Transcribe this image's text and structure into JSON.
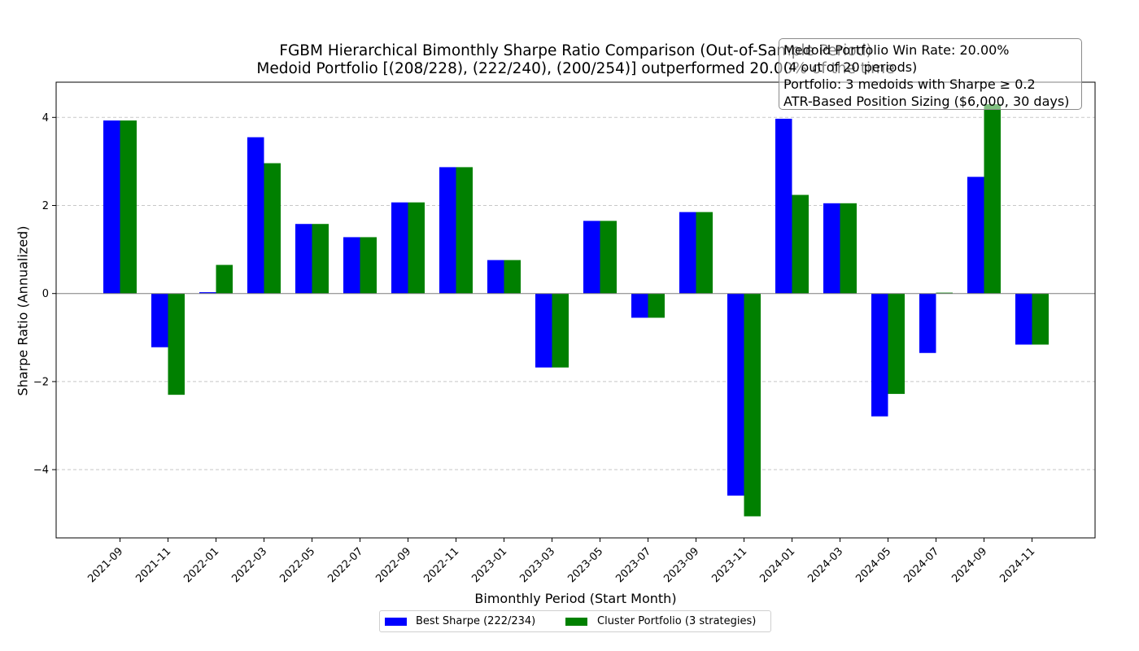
{
  "title": {
    "line1": "FGBM Hierarchical Bimonthly Sharpe Ratio Comparison (Out-of-Sample Period)",
    "line2": "Medoid Portfolio [(208/228), (222/240), (200/254)] outperformed 20.00% of the time"
  },
  "annotation": {
    "lines": [
      "Medoid Portfolio Win Rate: 20.00%",
      "(4 out of 20 periods)",
      "Portfolio: 3 medoids with Sharpe ≥ 0.2",
      "ATR-Based Position Sizing ($6,000, 30 days)"
    ]
  },
  "legend": {
    "items": [
      {
        "label": "Best Sharpe (222/234)",
        "color": "#0000ff"
      },
      {
        "label": "Cluster Portfolio (3 strategies)",
        "color": "#008000"
      }
    ],
    "placement": "bottom-center, below the axes"
  },
  "chart_data": {
    "type": "bar",
    "title": "FGBM Hierarchical Bimonthly Sharpe Ratio Comparison (Out-of-Sample Period)",
    "subtitle": "Medoid Portfolio [(208/228), (222/240), (200/254)] outperformed 20.00% of the time",
    "xlabel": "Bimonthly Period (Start Month)",
    "ylabel": "Sharpe Ratio (Annualized)",
    "ylim": [
      -5.55,
      4.8
    ],
    "yticks": [
      -4,
      -2,
      0,
      2,
      4
    ],
    "grid": "horizontal dashed",
    "categories": [
      "2021-09",
      "2021-11",
      "2022-01",
      "2022-03",
      "2022-05",
      "2022-07",
      "2022-09",
      "2022-11",
      "2023-01",
      "2023-03",
      "2023-05",
      "2023-07",
      "2023-09",
      "2023-11",
      "2024-01",
      "2024-03",
      "2024-05",
      "2024-07",
      "2024-09",
      "2024-11"
    ],
    "series": [
      {
        "name": "Best Sharpe (222/234)",
        "color": "#0000ff",
        "values": [
          3.93,
          -1.22,
          0.03,
          3.55,
          1.58,
          1.28,
          2.07,
          2.87,
          0.76,
          -1.68,
          1.65,
          -0.55,
          1.85,
          -4.59,
          3.97,
          2.05,
          -2.79,
          -1.35,
          2.65,
          -1.16
        ]
      },
      {
        "name": "Cluster Portfolio (3 strategies)",
        "color": "#008000",
        "values": [
          3.93,
          -2.3,
          0.65,
          2.96,
          1.58,
          1.28,
          2.07,
          2.87,
          0.76,
          -1.68,
          1.65,
          -0.55,
          1.85,
          -5.06,
          2.24,
          2.05,
          -2.28,
          0.02,
          4.3,
          -1.16
        ]
      }
    ]
  }
}
